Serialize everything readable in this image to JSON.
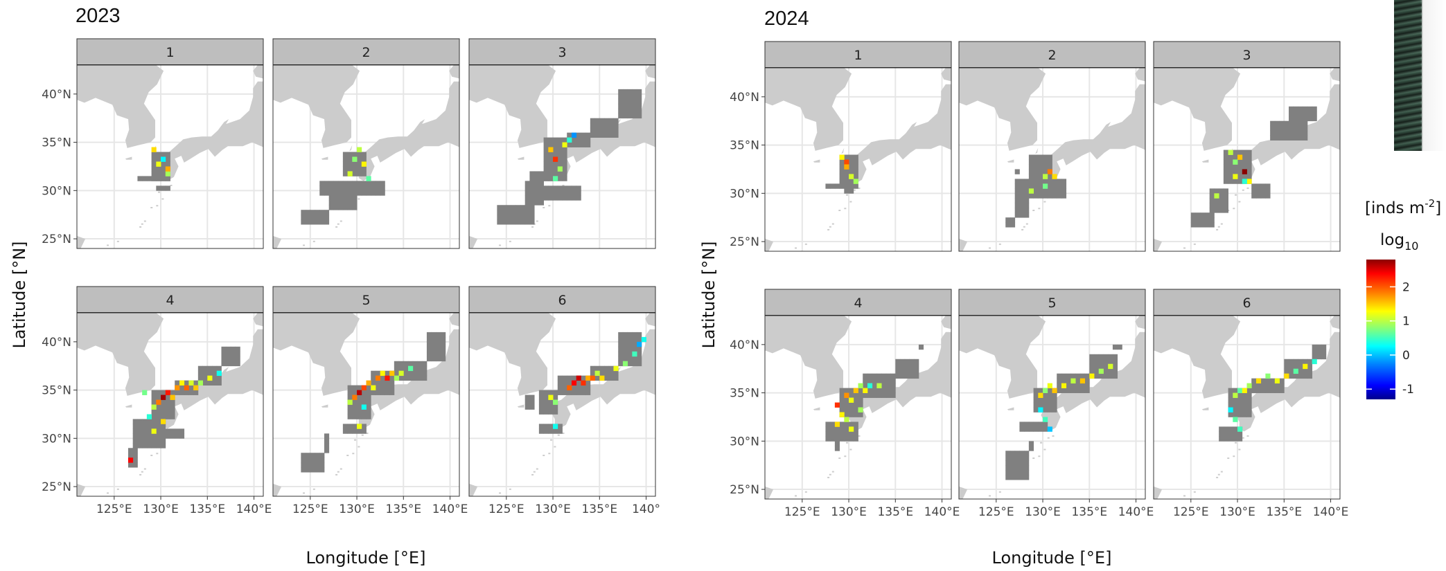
{
  "figure": {
    "panels": [
      {
        "year": "2023",
        "facets": [
          "1",
          "2",
          "3",
          "4",
          "5",
          "6"
        ]
      },
      {
        "year": "2024",
        "facets": [
          "1",
          "2",
          "3",
          "4",
          "5",
          "6"
        ]
      }
    ],
    "x_axis": {
      "title": "Longitude [°E]",
      "ticks": [
        "125°E",
        "130°E",
        "135°E",
        "140°E"
      ],
      "last_tick_right_panel_2023": "140°"
    },
    "y_axis": {
      "title": "Latitude [°N]",
      "ticks": [
        "40°N",
        "35°N",
        "30°N",
        "25°N"
      ]
    },
    "legend": {
      "title_line1": "[inds m",
      "title_sup": "-2",
      "title_close": "]",
      "title_line2": "log",
      "title_sub": "10",
      "ticks": [
        "2",
        "1",
        "0",
        "-1"
      ],
      "range": [
        -1.3,
        2.8
      ],
      "colorscale": [
        "#00008b",
        "#0000ff",
        "#0080ff",
        "#00ffff",
        "#7fff7f",
        "#ffff00",
        "#ff8000",
        "#ff0000",
        "#8b0000"
      ]
    },
    "colors": {
      "land": "#cccccc",
      "sampled_cell": "#808080",
      "strip": "#bebebe",
      "grid": "#e6e6e6",
      "panel_bg": "#ffffff"
    }
  },
  "map_data": {
    "lon_range": [
      121,
      141
    ],
    "lat_range": [
      24,
      43
    ],
    "cell_deg": 0.5,
    "measured_note": "cells: [lon, lat, log10 density]",
    "2023": {
      "1": [
        [
          130.0,
          33.0,
          0.2
        ],
        [
          129.5,
          32.5,
          1.2
        ],
        [
          130.5,
          31.5,
          0.9
        ],
        [
          129.0,
          34.0,
          1.4
        ],
        [
          130.5,
          32.0,
          1.6
        ]
      ],
      "2": [
        [
          130.0,
          34.0,
          1.0
        ],
        [
          129.5,
          33.0,
          0.8
        ],
        [
          130.5,
          32.5,
          1.3
        ],
        [
          131.0,
          31.0,
          0.6
        ],
        [
          129.0,
          31.5,
          1.1
        ]
      ],
      "3": [
        [
          129.5,
          34.0,
          1.5
        ],
        [
          130.0,
          33.0,
          2.1
        ],
        [
          130.5,
          32.0,
          0.9
        ],
        [
          131.0,
          34.5,
          1.2
        ],
        [
          131.5,
          35.0,
          0.4
        ],
        [
          132.0,
          35.5,
          -0.2
        ],
        [
          130.0,
          31.0,
          0.6
        ]
      ],
      "4": [
        [
          130.0,
          34.0,
          2.7
        ],
        [
          129.5,
          33.5,
          1.8
        ],
        [
          130.5,
          34.5,
          2.2
        ],
        [
          131.0,
          34.0,
          1.5
        ],
        [
          129.0,
          33.0,
          1.0
        ],
        [
          128.5,
          32.0,
          0.4
        ],
        [
          131.5,
          35.0,
          1.7
        ],
        [
          132.0,
          35.5,
          1.3
        ],
        [
          132.5,
          35.0,
          1.9
        ],
        [
          133.0,
          35.5,
          1.1
        ],
        [
          133.5,
          35.0,
          1.5
        ],
        [
          134.0,
          35.5,
          0.9
        ],
        [
          135.0,
          36.0,
          1.2
        ],
        [
          136.0,
          36.5,
          0.3
        ],
        [
          129.0,
          30.5,
          1.2
        ],
        [
          126.5,
          27.5,
          2.3
        ],
        [
          128.0,
          34.5,
          0.7
        ],
        [
          130.0,
          31.5,
          1.4
        ]
      ],
      "5": [
        [
          130.0,
          34.5,
          2.6
        ],
        [
          130.5,
          35.0,
          2.0
        ],
        [
          131.0,
          35.5,
          1.6
        ],
        [
          131.5,
          35.0,
          1.2
        ],
        [
          132.0,
          36.0,
          1.8
        ],
        [
          132.5,
          36.5,
          1.3
        ],
        [
          133.0,
          36.0,
          2.2
        ],
        [
          133.5,
          36.5,
          1.5
        ],
        [
          134.0,
          36.0,
          0.9
        ],
        [
          134.5,
          36.5,
          1.1
        ],
        [
          135.5,
          37.0,
          0.6
        ],
        [
          129.5,
          34.0,
          1.8
        ],
        [
          129.0,
          33.5,
          1.0
        ],
        [
          130.0,
          31.0,
          1.2
        ],
        [
          130.5,
          33.0,
          0.3
        ]
      ],
      "6": [
        [
          129.5,
          34.0,
          1.2
        ],
        [
          130.0,
          33.5,
          0.8
        ],
        [
          131.5,
          35.0,
          1.9
        ],
        [
          132.0,
          35.5,
          2.3
        ],
        [
          132.5,
          36.0,
          2.5
        ],
        [
          133.0,
          35.5,
          2.1
        ],
        [
          133.5,
          36.0,
          1.6
        ],
        [
          134.0,
          36.0,
          1.9
        ],
        [
          134.5,
          36.5,
          1.0
        ],
        [
          135.0,
          36.0,
          1.4
        ],
        [
          136.5,
          37.0,
          1.2
        ],
        [
          137.5,
          37.5,
          0.8
        ],
        [
          138.5,
          38.5,
          0.5
        ],
        [
          139.0,
          39.5,
          -0.1
        ],
        [
          139.5,
          40.0,
          0.3
        ],
        [
          130.0,
          31.0,
          0.3
        ]
      ]
    },
    "2024": {
      "1": [
        [
          129.5,
          33.0,
          2.0
        ],
        [
          129.5,
          32.5,
          1.6
        ],
        [
          130.0,
          31.5,
          1.1
        ],
        [
          130.5,
          31.0,
          0.9
        ],
        [
          129.0,
          33.5,
          1.3
        ]
      ],
      "2": [
        [
          130.5,
          32.0,
          1.8
        ],
        [
          130.0,
          31.5,
          1.0
        ],
        [
          131.0,
          31.5,
          1.4
        ],
        [
          128.5,
          30.0,
          1.0
        ],
        [
          130.0,
          30.5,
          0.7
        ]
      ],
      "3": [
        [
          130.0,
          33.5,
          1.5
        ],
        [
          129.5,
          33.0,
          0.8
        ],
        [
          130.5,
          32.0,
          2.9
        ],
        [
          131.0,
          31.0,
          1.3
        ],
        [
          129.0,
          34.0,
          1.0
        ],
        [
          130.5,
          31.0,
          0.4
        ],
        [
          129.5,
          31.5,
          1.2
        ],
        [
          127.5,
          29.5,
          1.0
        ]
      ],
      "4": [
        [
          129.5,
          34.5,
          1.7
        ],
        [
          130.0,
          34.0,
          1.2
        ],
        [
          130.5,
          35.0,
          1.5
        ],
        [
          131.0,
          35.5,
          0.9
        ],
        [
          131.5,
          35.0,
          1.3
        ],
        [
          132.0,
          35.5,
          0.4
        ],
        [
          128.5,
          33.5,
          2.1
        ],
        [
          129.0,
          32.5,
          1.3
        ],
        [
          129.5,
          32.0,
          1.0
        ],
        [
          128.5,
          31.5,
          1.4
        ],
        [
          130.0,
          31.0,
          1.2
        ],
        [
          133.0,
          35.5,
          1.0
        ],
        [
          131.0,
          33.0,
          0.9
        ]
      ],
      "5": [
        [
          129.5,
          34.5,
          1.4
        ],
        [
          130.0,
          35.0,
          0.8
        ],
        [
          130.5,
          35.5,
          1.2
        ],
        [
          131.0,
          35.0,
          1.5
        ],
        [
          132.0,
          35.5,
          1.3
        ],
        [
          133.0,
          36.0,
          1.0
        ],
        [
          134.0,
          36.0,
          1.5
        ],
        [
          135.0,
          36.5,
          1.3
        ],
        [
          136.0,
          37.0,
          0.9
        ],
        [
          137.0,
          37.5,
          1.1
        ],
        [
          129.5,
          33.0,
          0.2
        ],
        [
          130.0,
          32.0,
          0.5
        ],
        [
          130.5,
          31.0,
          0.0
        ]
      ],
      "6": [
        [
          129.5,
          34.5,
          1.0
        ],
        [
          130.0,
          35.0,
          0.6
        ],
        [
          130.5,
          35.0,
          1.3
        ],
        [
          131.0,
          35.5,
          0.9
        ],
        [
          132.0,
          36.0,
          1.4
        ],
        [
          133.0,
          36.5,
          0.8
        ],
        [
          134.0,
          36.0,
          1.2
        ],
        [
          135.0,
          36.5,
          1.4
        ],
        [
          136.0,
          37.0,
          0.6
        ],
        [
          137.0,
          37.5,
          1.3
        ],
        [
          138.0,
          38.0,
          0.4
        ],
        [
          129.0,
          33.0,
          0.2
        ],
        [
          129.5,
          32.0,
          0.6
        ],
        [
          130.0,
          31.0,
          0.5
        ]
      ]
    }
  }
}
